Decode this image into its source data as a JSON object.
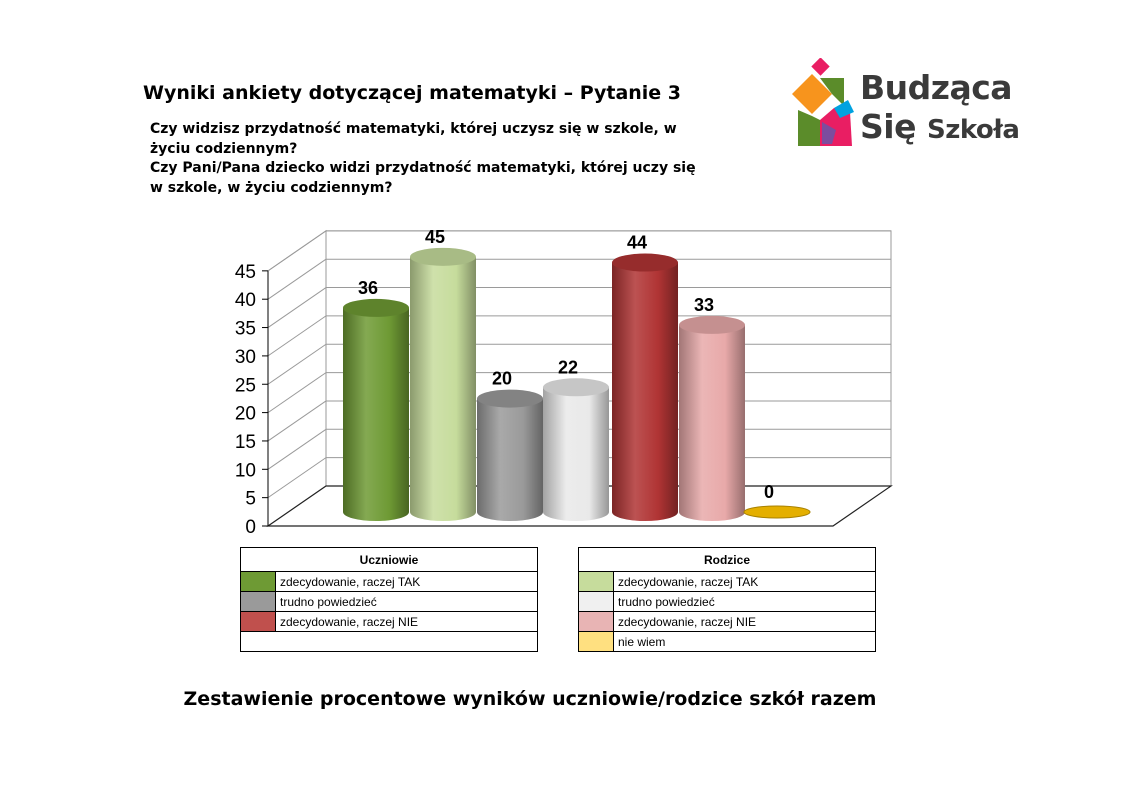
{
  "title": "Wyniki ankiety dotyczącej matematyki – Pytanie 3",
  "question_students": "Czy widzisz przydatność matematyki, której uczysz się w szkole, w życiu codziennym?",
  "question_parents": "Czy Pani/Pana dziecko widzi przydatność matematyki, której uczy się w szkole, w życiu codziennym?",
  "logo": {
    "line1": "Budząca",
    "line2_a": "Się",
    "line2_b": "Szkoła",
    "colors": [
      "#e91e63",
      "#f7941d",
      "#00a2e0",
      "#5b8c2a",
      "#7d4c9e"
    ]
  },
  "chart_data": {
    "type": "bar",
    "style": "3d-cylinder",
    "categories": [
      "zdecydowanie, raczej TAK (Uczniowie)",
      "zdecydowanie, raczej TAK (Rodzice)",
      "trudno powiedzieć (Uczniowie)",
      "trudno powiedzieć (Rodzice)",
      "zdecydowanie, raczej NIE (Uczniowie)",
      "zdecydowanie, raczej NIE (Rodzice)",
      "nie wiem (Rodzice)"
    ],
    "values": [
      36,
      45,
      20,
      22,
      44,
      33,
      0
    ],
    "data_labels": [
      "36",
      "45",
      "20",
      "22",
      "44",
      "33",
      "0"
    ],
    "colors": [
      "#6e9a34",
      "#c6dc9c",
      "#9a9a9a",
      "#e9e9e9",
      "#b03434",
      "#e8a9a9",
      "#f0b800"
    ],
    "ylim": [
      0,
      45
    ],
    "yticks": [
      "0",
      "5",
      "10",
      "15",
      "20",
      "25",
      "30",
      "35",
      "40",
      "45"
    ],
    "grid": true
  },
  "legend": {
    "students": {
      "header": "Uczniowie",
      "items": [
        {
          "label": "zdecydowanie, raczej TAK",
          "color": "#6e9a34"
        },
        {
          "label": "trudno powiedzieć",
          "color": "#9a9a9a"
        },
        {
          "label": "zdecydowanie, raczej NIE",
          "color": "#c0504d"
        },
        {
          "label": "",
          "color": ""
        }
      ]
    },
    "parents": {
      "header": "Rodzice",
      "items": [
        {
          "label": "zdecydowanie, raczej TAK",
          "color": "#c6dc9c"
        },
        {
          "label": "trudno powiedzieć",
          "color": "#f0f0f0"
        },
        {
          "label": "zdecydowanie, raczej NIE",
          "color": "#e8b4b4"
        },
        {
          "label": "nie wiem",
          "color": "#ffe080"
        }
      ]
    }
  },
  "caption": "Zestawienie procentowe wyników uczniowie/rodzice szkół razem"
}
